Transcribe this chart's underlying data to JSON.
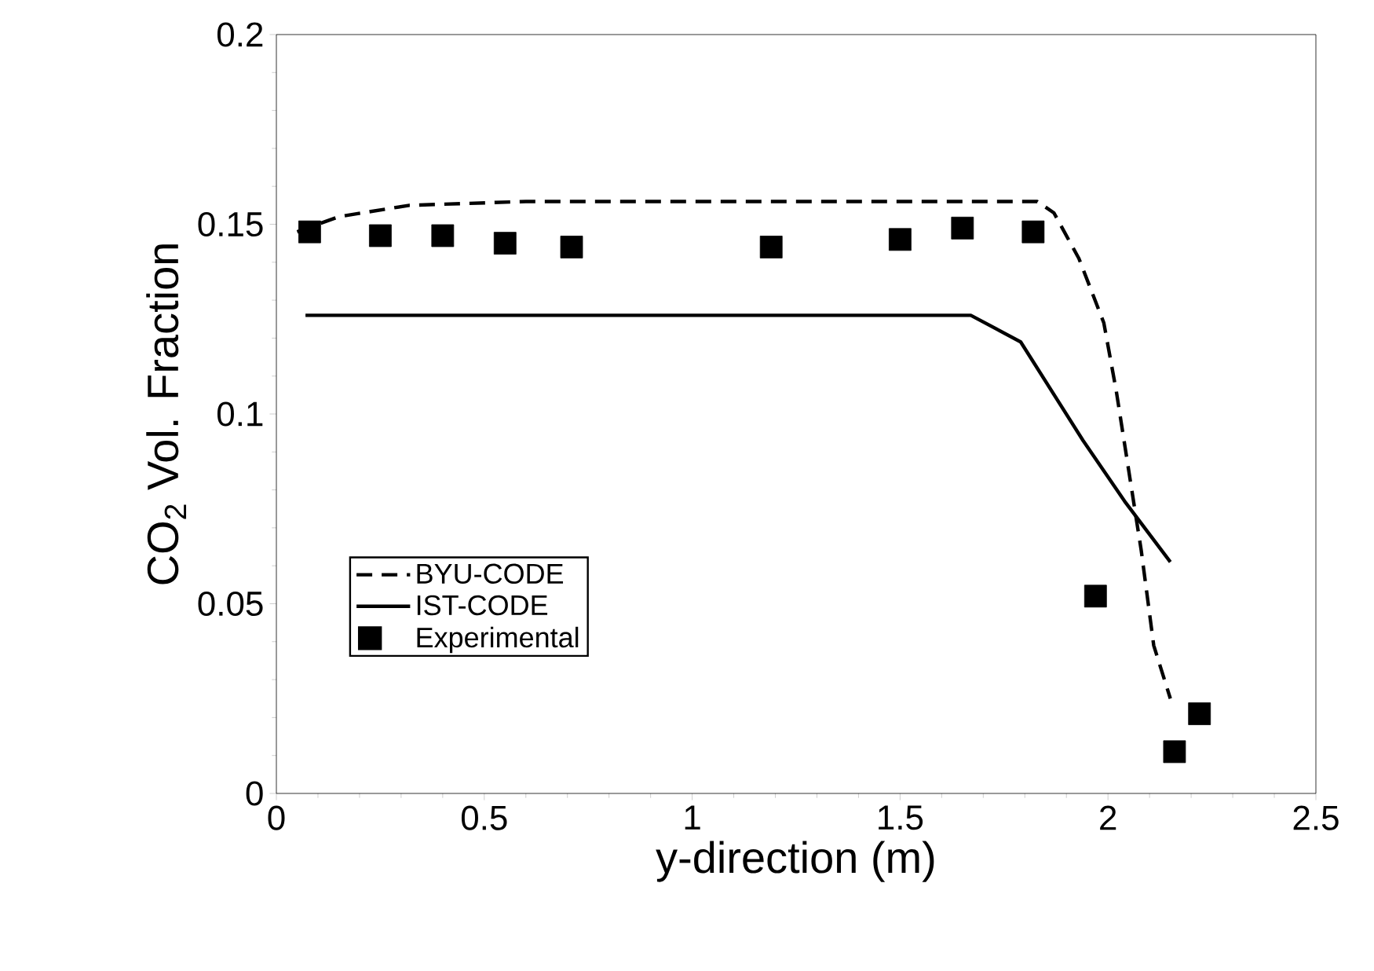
{
  "chart_data": {
    "type": "line",
    "xlabel": "y-direction (m)",
    "ylabel": "CO$_{2}$ Vol. Fraction",
    "xlim": [
      0,
      2.5
    ],
    "ylim": [
      0,
      0.2
    ],
    "xticks": [
      0,
      0.5,
      1,
      1.5,
      2,
      2.5
    ],
    "yticks": [
      0,
      0.05,
      0.1,
      0.15,
      0.2
    ],
    "grid": false,
    "legend": "bottom left",
    "series": [
      {
        "name": "BYU-CODE",
        "color": "#000000",
        "line_style": "dashed",
        "marker": "none",
        "x": [
          0.05,
          0.15,
          0.32,
          0.6,
          1.0,
          1.4,
          1.83,
          1.87,
          1.93,
          1.99,
          2.02,
          2.05,
          2.08,
          2.11,
          2.15
        ],
        "values": [
          0.148,
          0.152,
          0.155,
          0.156,
          0.156,
          0.156,
          0.156,
          0.153,
          0.141,
          0.124,
          0.106,
          0.085,
          0.064,
          0.039,
          0.025
        ]
      },
      {
        "name": "IST-CODE",
        "color": "#000000",
        "line_style": "solid",
        "marker": "none",
        "x": [
          0.07,
          1.0,
          1.67,
          1.79,
          1.94,
          2.04,
          2.15
        ],
        "values": [
          0.126,
          0.126,
          0.126,
          0.119,
          0.093,
          0.077,
          0.061
        ]
      },
      {
        "name": "Experimental",
        "type": "scatter",
        "color": "#000000",
        "marker": "square",
        "x": [
          0.08,
          0.25,
          0.4,
          0.55,
          0.71,
          1.19,
          1.5,
          1.65,
          1.82,
          1.97,
          2.16,
          2.22
        ],
        "values": [
          0.148,
          0.147,
          0.147,
          0.145,
          0.144,
          0.144,
          0.146,
          0.149,
          0.148,
          0.052,
          0.011,
          0.021
        ]
      }
    ]
  }
}
